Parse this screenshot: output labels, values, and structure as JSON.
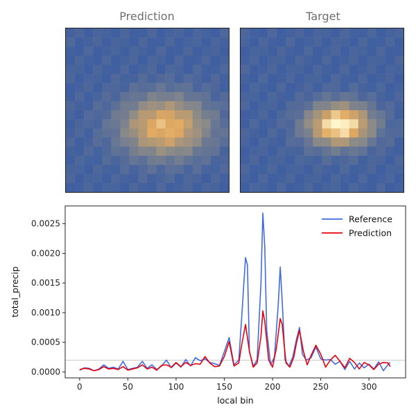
{
  "panels": {
    "left_title": "Prediction",
    "right_title": "Target"
  },
  "colors": {
    "reference": "#4169e1",
    "prediction": "#e8000b",
    "baseline": "#bbbbbb",
    "heat_low": "#3f5fa0",
    "heat_mid": "#8a8a88",
    "heat_high": "#fff6cc"
  },
  "heatmaps": [
    {
      "name": "prediction",
      "peak_row": 0.6,
      "peak_col": 0.61,
      "sigma_row": 0.13,
      "sigma_col": 0.19,
      "peak": 0.78
    },
    {
      "name": "target",
      "peak_row": 0.59,
      "peak_col": 0.61,
      "sigma_row": 0.09,
      "sigma_col": 0.14,
      "peak": 1.0
    }
  ],
  "chart_data": {
    "type": "line",
    "xlabel": "local bin",
    "ylabel": "total_precip",
    "xlim": [
      -15,
      338
    ],
    "ylim": [
      -0.0001,
      0.0028
    ],
    "xticks": [
      0,
      50,
      100,
      150,
      200,
      250,
      300
    ],
    "yticks": [
      0.0,
      0.0005,
      0.001,
      0.0015,
      0.002,
      0.0025
    ],
    "ytick_labels": [
      "0.0000",
      "0.0005",
      "0.0010",
      "0.0015",
      "0.0020",
      "0.0025"
    ],
    "baseline": 0.0002,
    "legend_position": "top-right",
    "series": [
      {
        "name": "Reference",
        "x": [
          0,
          5,
          10,
          15,
          20,
          25,
          30,
          35,
          40,
          45,
          50,
          55,
          60,
          65,
          70,
          75,
          80,
          85,
          90,
          95,
          100,
          105,
          110,
          115,
          120,
          125,
          130,
          135,
          140,
          145,
          150,
          155,
          160,
          165,
          168,
          172,
          174,
          176,
          180,
          184,
          188,
          190,
          192,
          194,
          198,
          202,
          206,
          208,
          210,
          213,
          217,
          221,
          225,
          228,
          231,
          235,
          240,
          245,
          250,
          255,
          260,
          265,
          270,
          275,
          280,
          285,
          290,
          295,
          300,
          305,
          310,
          315,
          320,
          322
        ],
        "y": [
          3e-05,
          7e-05,
          6e-05,
          2e-05,
          5e-05,
          0.00012,
          6e-05,
          8e-05,
          5e-05,
          0.00018,
          4e-05,
          6e-05,
          8e-05,
          0.00018,
          6e-05,
          0.00012,
          4e-05,
          0.0001,
          0.0002,
          7e-05,
          0.00015,
          8e-05,
          0.00021,
          0.0001,
          0.00024,
          0.00019,
          0.00022,
          0.00016,
          0.00014,
          0.00011,
          0.00034,
          0.00058,
          0.00012,
          0.0002,
          0.0009,
          0.00193,
          0.0018,
          0.00035,
          0.0001,
          0.0002,
          0.0015,
          0.00268,
          0.0021,
          0.0007,
          0.00012,
          0.00025,
          0.00115,
          0.00177,
          0.0012,
          0.0002,
          0.0001,
          0.00025,
          0.00056,
          0.00075,
          0.0003,
          0.0002,
          0.00024,
          0.00042,
          0.00022,
          0.0002,
          0.00021,
          0.00013,
          0.00018,
          4e-05,
          0.00018,
          5e-05,
          0.00015,
          7e-05,
          0.00013,
          5e-05,
          0.00017,
          2e-05,
          0.00013,
          0.00016
        ]
      },
      {
        "name": "Prediction",
        "x": [
          0,
          5,
          10,
          15,
          20,
          25,
          30,
          35,
          40,
          45,
          50,
          55,
          60,
          65,
          70,
          75,
          80,
          85,
          90,
          95,
          100,
          105,
          110,
          115,
          120,
          125,
          130,
          135,
          140,
          145,
          150,
          155,
          160,
          165,
          168,
          172,
          176,
          180,
          184,
          188,
          190,
          192,
          196,
          200,
          204,
          208,
          210,
          214,
          218,
          222,
          225,
          228,
          232,
          236,
          240,
          245,
          250,
          255,
          260,
          265,
          270,
          275,
          280,
          285,
          290,
          295,
          300,
          305,
          310,
          315,
          320,
          322
        ],
        "y": [
          4e-05,
          6e-05,
          5e-05,
          2e-05,
          4e-05,
          9e-05,
          5e-05,
          6e-05,
          4e-05,
          9e-05,
          3e-05,
          5e-05,
          7e-05,
          0.00012,
          5e-05,
          8e-05,
          3e-05,
          0.00011,
          0.00012,
          8e-05,
          0.00016,
          9e-05,
          0.00016,
          0.00011,
          0.00014,
          0.00013,
          0.00026,
          0.00015,
          9e-05,
          0.0001,
          0.00026,
          0.00051,
          0.0001,
          0.00015,
          0.00045,
          0.0008,
          0.00035,
          8e-05,
          0.00015,
          0.0006,
          0.00103,
          0.00085,
          0.0002,
          8e-05,
          0.0004,
          0.0009,
          0.0008,
          0.00015,
          8e-05,
          0.00025,
          0.0005,
          0.0007,
          0.00035,
          0.00012,
          0.00028,
          0.00045,
          0.0003,
          8e-05,
          0.0002,
          0.00028,
          0.00018,
          7e-05,
          0.00023,
          0.00016,
          5e-05,
          0.00016,
          0.00012,
          4e-05,
          0.00013,
          0.00016,
          0.00015,
          9e-05
        ]
      }
    ]
  }
}
